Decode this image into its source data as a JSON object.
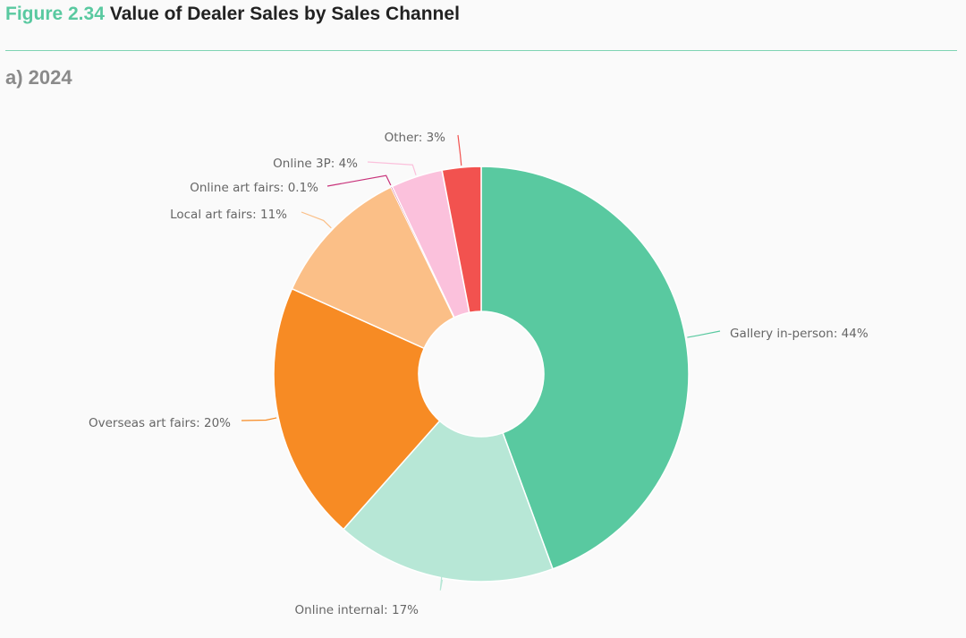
{
  "figure": {
    "number": "Figure 2.34",
    "title": "Value of Dealer Sales by Sales Channel",
    "subtitle": "a) 2024"
  },
  "chart_data": {
    "type": "pie",
    "donut": true,
    "unit": "%",
    "slices": [
      {
        "label": "Gallery in-person: 44%",
        "name": "Gallery in-person",
        "value": 44,
        "color": "#59c9a0"
      },
      {
        "label": "Online internal: 17%",
        "name": "Online internal",
        "value": 17,
        "color": "#b7e7d6"
      },
      {
        "label": "Overseas art fairs: 20%",
        "name": "Overseas art fairs",
        "value": 20,
        "color": "#f78b24"
      },
      {
        "label": "Local art fairs: 11%",
        "name": "Local art fairs",
        "value": 11,
        "color": "#fbbf87"
      },
      {
        "label": "Online art fairs: 0.1%",
        "name": "Online art fairs",
        "value": 0.1,
        "color": "#c8327a"
      },
      {
        "label": "Online 3P: 4%",
        "name": "Online 3P",
        "value": 4,
        "color": "#fbc1dc"
      },
      {
        "label": "Other: 3%",
        "name": "Other",
        "value": 3,
        "color": "#f2524f"
      }
    ]
  }
}
